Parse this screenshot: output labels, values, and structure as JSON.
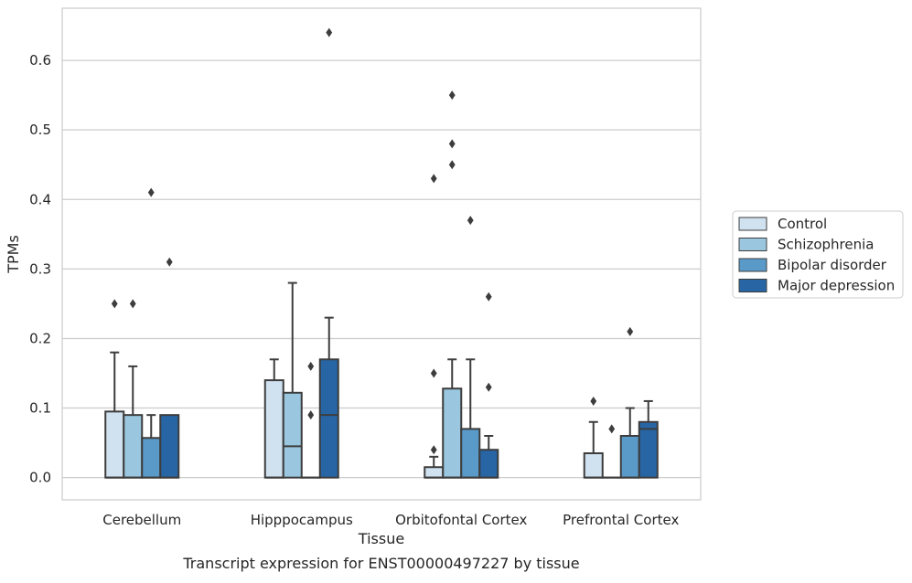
{
  "chart_data": {
    "type": "boxplot",
    "title": "",
    "caption": "Transcript expression for ENST00000497227 by tissue",
    "xlabel": "Tissue",
    "ylabel": "TPMs",
    "ylim": [
      -0.032,
      0.675
    ],
    "yticks": [
      0.0,
      0.1,
      0.2,
      0.3,
      0.4,
      0.5,
      0.6
    ],
    "ytick_labels": [
      "0.0",
      "0.1",
      "0.2",
      "0.3",
      "0.4",
      "0.5",
      "0.6"
    ],
    "grid": true,
    "legend_position": "outside-right",
    "categories": [
      "Cerebellum",
      "Hipppocampus",
      "Orbitofontal Cortex",
      "Prefrontal Cortex"
    ],
    "series": [
      {
        "name": "Control",
        "color": "#d0e1f0",
        "boxes": [
          {
            "q1": 0.0,
            "median": 0.0,
            "q3": 0.095,
            "whisker_low": 0.0,
            "whisker_high": 0.18,
            "outliers": [
              0.25
            ]
          },
          {
            "q1": 0.0,
            "median": 0.0,
            "q3": 0.14,
            "whisker_low": 0.0,
            "whisker_high": 0.17,
            "outliers": []
          },
          {
            "q1": 0.0,
            "median": 0.0,
            "q3": 0.015,
            "whisker_low": 0.0,
            "whisker_high": 0.03,
            "outliers": [
              0.04,
              0.15,
              0.43
            ]
          },
          {
            "q1": 0.0,
            "median": 0.0,
            "q3": 0.035,
            "whisker_low": 0.0,
            "whisker_high": 0.08,
            "outliers": [
              0.11
            ]
          }
        ]
      },
      {
        "name": "Schizophrenia",
        "color": "#9ac7df",
        "boxes": [
          {
            "q1": 0.0,
            "median": 0.0,
            "q3": 0.09,
            "whisker_low": 0.0,
            "whisker_high": 0.16,
            "outliers": [
              0.25
            ]
          },
          {
            "q1": 0.0,
            "median": 0.045,
            "q3": 0.122,
            "whisker_low": 0.0,
            "whisker_high": 0.28,
            "outliers": []
          },
          {
            "q1": 0.0,
            "median": 0.0,
            "q3": 0.128,
            "whisker_low": 0.0,
            "whisker_high": 0.17,
            "outliers": [
              0.45,
              0.48,
              0.55
            ]
          },
          {
            "q1": 0.0,
            "median": 0.0,
            "q3": 0.0,
            "whisker_low": 0.0,
            "whisker_high": 0.0,
            "outliers": [
              0.07
            ]
          }
        ]
      },
      {
        "name": "Bipolar disorder",
        "color": "#5a9ac9",
        "boxes": [
          {
            "q1": 0.0,
            "median": 0.0,
            "q3": 0.057,
            "whisker_low": 0.0,
            "whisker_high": 0.09,
            "outliers": [
              0.41
            ]
          },
          {
            "q1": 0.0,
            "median": 0.0,
            "q3": 0.0,
            "whisker_low": 0.0,
            "whisker_high": 0.0,
            "outliers": [
              0.09,
              0.16
            ]
          },
          {
            "q1": 0.0,
            "median": 0.0,
            "q3": 0.07,
            "whisker_low": 0.0,
            "whisker_high": 0.17,
            "outliers": [
              0.37
            ]
          },
          {
            "q1": 0.0,
            "median": 0.0,
            "q3": 0.06,
            "whisker_low": 0.0,
            "whisker_high": 0.1,
            "outliers": [
              0.21
            ]
          }
        ]
      },
      {
        "name": "Major depression",
        "color": "#2765a5",
        "boxes": [
          {
            "q1": 0.0,
            "median": 0.0,
            "q3": 0.09,
            "whisker_low": 0.0,
            "whisker_high": 0.09,
            "outliers": [
              0.31
            ]
          },
          {
            "q1": 0.0,
            "median": 0.09,
            "q3": 0.17,
            "whisker_low": 0.0,
            "whisker_high": 0.23,
            "outliers": [
              0.64
            ]
          },
          {
            "q1": 0.0,
            "median": 0.0,
            "q3": 0.04,
            "whisker_low": 0.0,
            "whisker_high": 0.06,
            "outliers": [
              0.13,
              0.26
            ]
          },
          {
            "q1": 0.0,
            "median": 0.07,
            "q3": 0.08,
            "whisker_low": 0.0,
            "whisker_high": 0.11,
            "outliers": []
          }
        ]
      }
    ]
  }
}
